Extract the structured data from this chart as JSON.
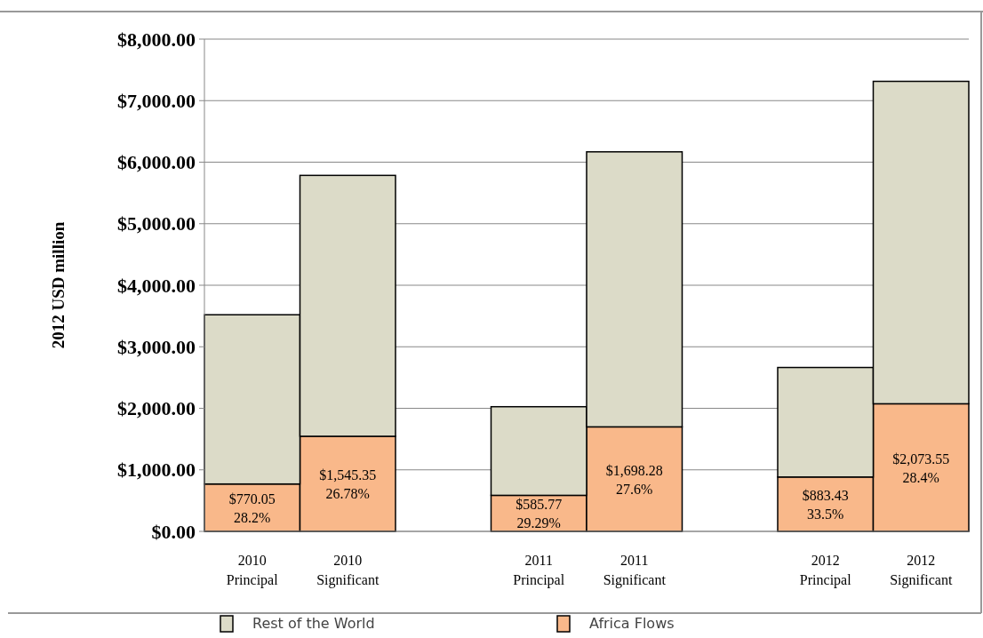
{
  "chart_data": {
    "type": "bar",
    "stacked": true,
    "ylabel": "2012 USD million",
    "categories": [
      "2010\nPrincipal",
      "2010\nSignificant",
      null,
      "2011\nPrincipal",
      "2011\nSignificant",
      null,
      "2012\nPrincipal",
      "2012\nSignificant"
    ],
    "series": [
      {
        "name": "Africa Flows",
        "color": "#f9b88a",
        "values": [
          770.05,
          1545.35,
          null,
          585.77,
          1698.28,
          null,
          883.43,
          2073.55
        ],
        "value_labels": [
          "$770.05\n28.2%",
          "$1,545.35\n26.78%",
          null,
          "$585.77\n29.29%",
          "$1,698.28\n27.6%",
          null,
          "$883.43\n33.5%",
          "$2,073.55\n28.4%"
        ]
      },
      {
        "name": "Rest of the World",
        "color": "#dcdbc8",
        "values": [
          2750,
          4240,
          null,
          1440,
          4470,
          null,
          1780,
          5240
        ]
      }
    ],
    "ylim": [
      0,
      8000
    ],
    "yticks": [
      {
        "value": 0,
        "label": "$0.00"
      },
      {
        "value": 1000,
        "label": "$1,000.00"
      },
      {
        "value": 2000,
        "label": "$2,000.00"
      },
      {
        "value": 3000,
        "label": "$3,000.00"
      },
      {
        "value": 4000,
        "label": "$4,000.00"
      },
      {
        "value": 5000,
        "label": "$5,000.00"
      },
      {
        "value": 6000,
        "label": "$6,000.00"
      },
      {
        "value": 7000,
        "label": "$7,000.00"
      },
      {
        "value": 8000,
        "label": "$8,000.00"
      }
    ],
    "grid": "y",
    "legend": "bottom"
  }
}
